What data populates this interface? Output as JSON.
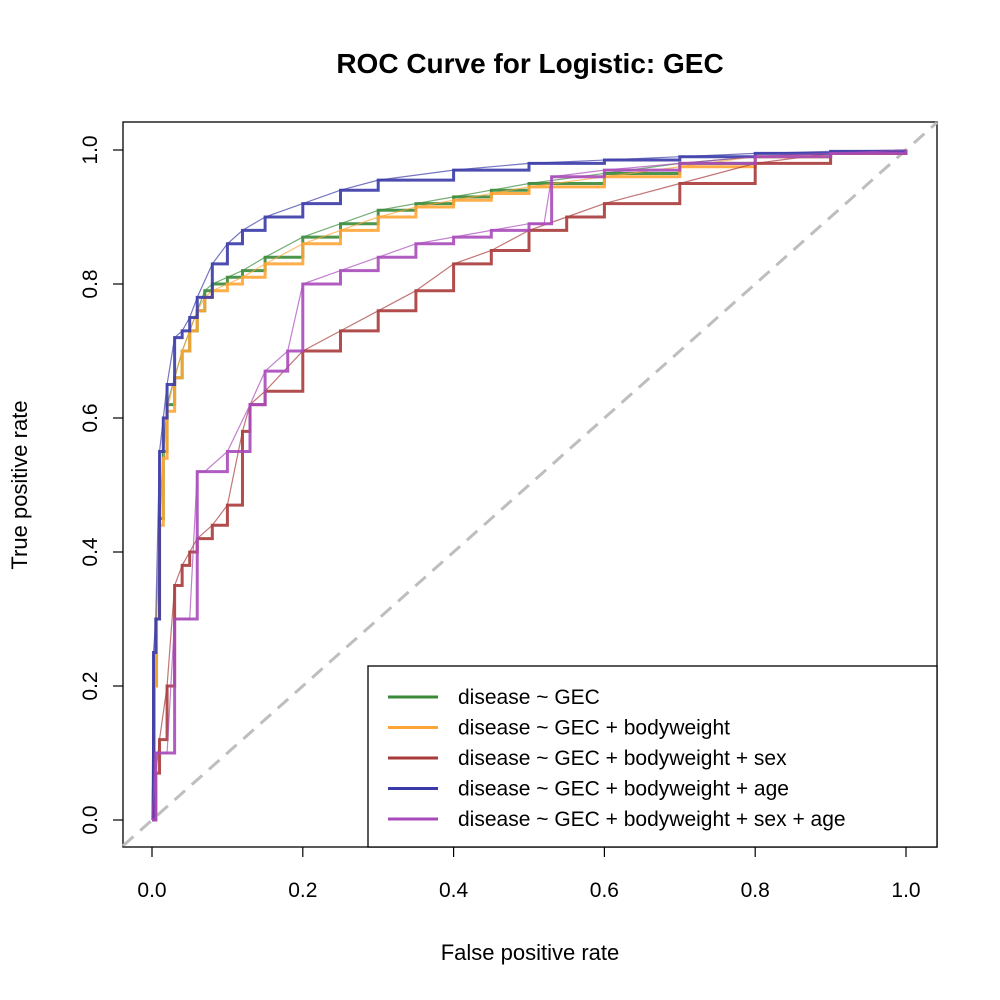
{
  "chart_data": {
    "type": "line",
    "title": "ROC Curve for Logistic:  GEC",
    "xlabel": "False positive rate",
    "ylabel": "True positive rate",
    "xlim": [
      0,
      1
    ],
    "ylim": [
      0,
      1
    ],
    "x_ticks": [
      "0.0",
      "0.2",
      "0.4",
      "0.6",
      "0.8",
      "1.0"
    ],
    "y_ticks": [
      "0.0",
      "0.2",
      "0.4",
      "0.6",
      "0.8",
      "1.0"
    ],
    "grid": false,
    "legend_position": "bottom-right",
    "reference_line": {
      "x": [
        0,
        1
      ],
      "y": [
        0,
        1
      ],
      "style": "dashed",
      "color": "#bebebe"
    },
    "series": [
      {
        "name": "disease ~ GEC",
        "color": "#3a8a3a",
        "x": [
          0,
          0.003,
          0.006,
          0.01,
          0.015,
          0.02,
          0.03,
          0.04,
          0.05,
          0.06,
          0.07,
          0.08,
          0.1,
          0.12,
          0.15,
          0.2,
          0.25,
          0.3,
          0.35,
          0.4,
          0.45,
          0.5,
          0.6,
          0.7,
          0.8,
          0.9,
          1.0
        ],
        "y": [
          0,
          0.2,
          0.3,
          0.45,
          0.55,
          0.62,
          0.66,
          0.7,
          0.73,
          0.76,
          0.79,
          0.8,
          0.81,
          0.82,
          0.84,
          0.87,
          0.89,
          0.91,
          0.92,
          0.93,
          0.94,
          0.95,
          0.965,
          0.98,
          0.99,
          0.995,
          1.0
        ]
      },
      {
        "name": "disease ~ GEC + bodyweight",
        "color": "#ffa535",
        "x": [
          0,
          0.003,
          0.006,
          0.01,
          0.015,
          0.02,
          0.03,
          0.04,
          0.05,
          0.06,
          0.07,
          0.08,
          0.1,
          0.12,
          0.15,
          0.2,
          0.25,
          0.3,
          0.35,
          0.4,
          0.45,
          0.5,
          0.6,
          0.7,
          0.8,
          0.9,
          1.0
        ],
        "y": [
          0,
          0.2,
          0.3,
          0.44,
          0.54,
          0.61,
          0.66,
          0.7,
          0.73,
          0.76,
          0.78,
          0.79,
          0.8,
          0.81,
          0.83,
          0.86,
          0.88,
          0.9,
          0.915,
          0.925,
          0.935,
          0.945,
          0.96,
          0.975,
          0.99,
          0.995,
          1.0
        ]
      },
      {
        "name": "disease ~ GEC + bodyweight + sex",
        "color": "#a83a3a",
        "x": [
          0,
          0.005,
          0.01,
          0.02,
          0.03,
          0.04,
          0.05,
          0.06,
          0.08,
          0.1,
          0.12,
          0.13,
          0.15,
          0.2,
          0.25,
          0.3,
          0.35,
          0.4,
          0.45,
          0.5,
          0.55,
          0.6,
          0.7,
          0.8,
          0.9,
          1.0
        ],
        "y": [
          0,
          0.07,
          0.12,
          0.2,
          0.35,
          0.38,
          0.4,
          0.42,
          0.44,
          0.47,
          0.58,
          0.62,
          0.64,
          0.7,
          0.73,
          0.76,
          0.79,
          0.83,
          0.85,
          0.88,
          0.9,
          0.92,
          0.95,
          0.98,
          0.995,
          1.0
        ]
      },
      {
        "name": "disease ~ GEC + bodyweight + age",
        "color": "#3a3aa8",
        "x": [
          0,
          0.002,
          0.005,
          0.01,
          0.015,
          0.02,
          0.03,
          0.04,
          0.05,
          0.06,
          0.08,
          0.1,
          0.12,
          0.15,
          0.2,
          0.25,
          0.3,
          0.4,
          0.5,
          0.6,
          0.7,
          0.8,
          0.9,
          1.0
        ],
        "y": [
          0,
          0.25,
          0.3,
          0.55,
          0.6,
          0.65,
          0.72,
          0.73,
          0.75,
          0.78,
          0.83,
          0.86,
          0.88,
          0.9,
          0.92,
          0.94,
          0.955,
          0.97,
          0.98,
          0.985,
          0.99,
          0.995,
          0.998,
          1.0
        ]
      },
      {
        "name": "disease ~ GEC + bodyweight + sex + age",
        "color": "#a84aba",
        "x": [
          0,
          0.005,
          0.01,
          0.02,
          0.03,
          0.05,
          0.06,
          0.07,
          0.1,
          0.13,
          0.15,
          0.18,
          0.2,
          0.25,
          0.3,
          0.35,
          0.4,
          0.45,
          0.5,
          0.52,
          0.53,
          0.6,
          0.7,
          0.8,
          0.9,
          1.0
        ],
        "y": [
          0,
          0.1,
          0.1,
          0.1,
          0.3,
          0.3,
          0.52,
          0.52,
          0.55,
          0.62,
          0.67,
          0.7,
          0.8,
          0.82,
          0.84,
          0.86,
          0.87,
          0.88,
          0.89,
          0.89,
          0.96,
          0.97,
          0.98,
          0.99,
          0.995,
          1.0
        ]
      }
    ]
  }
}
